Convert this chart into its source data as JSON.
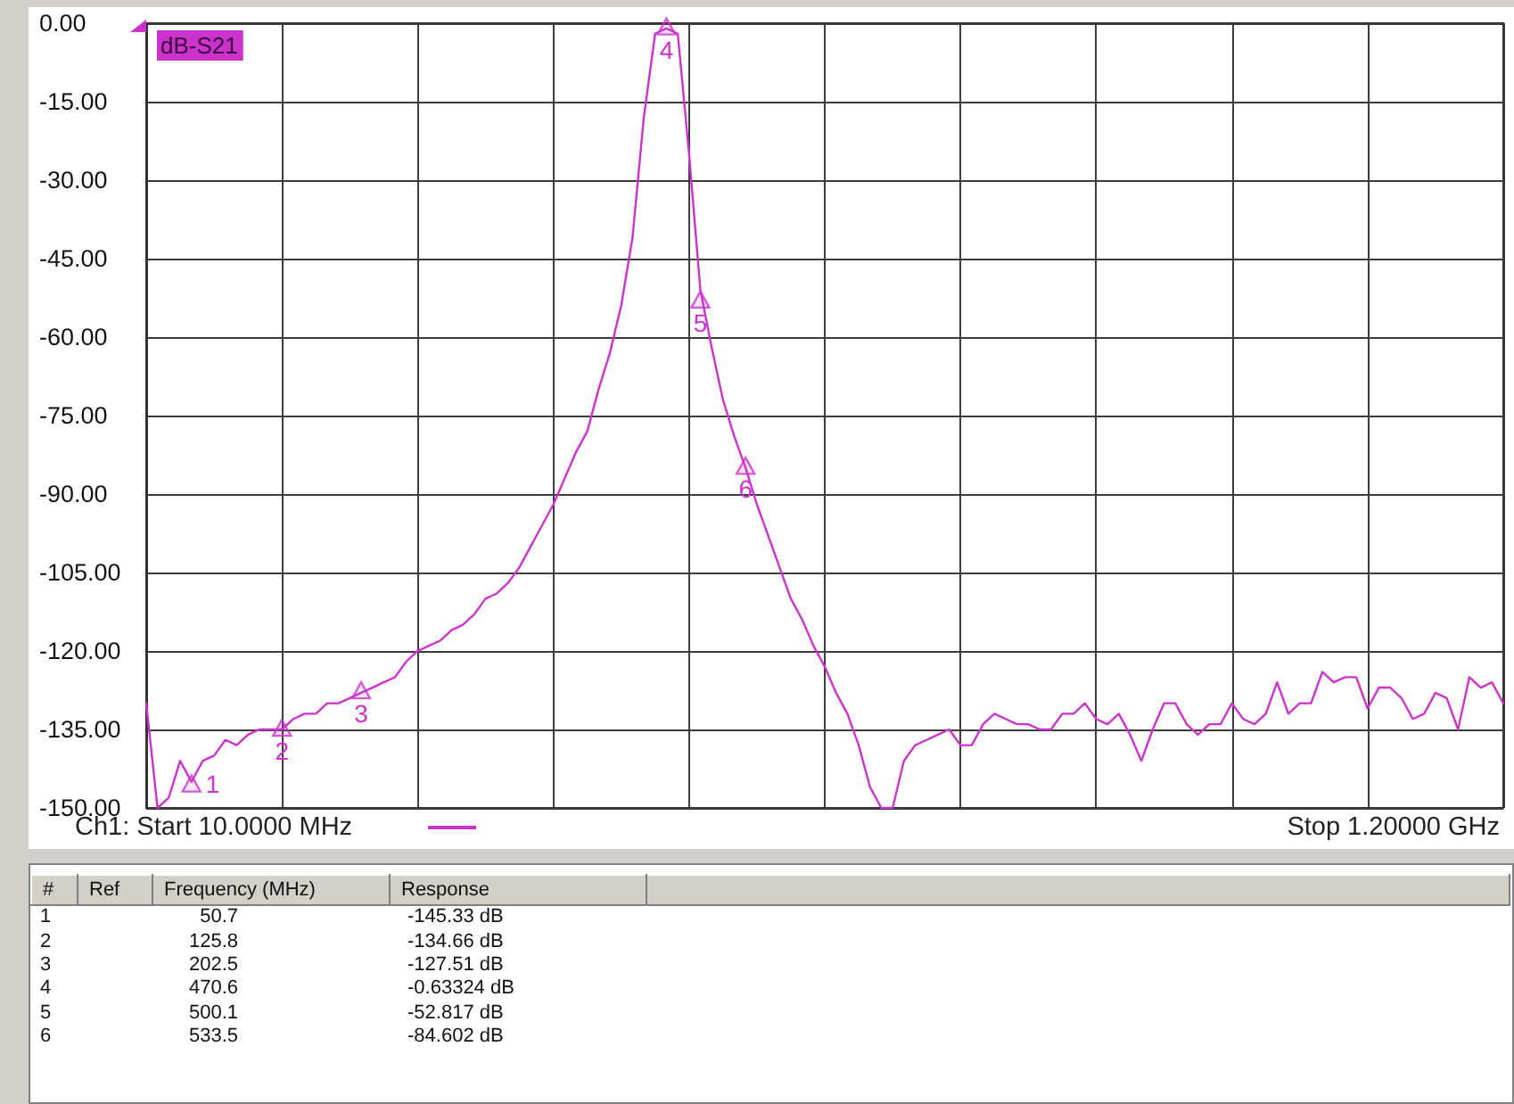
{
  "chart_data": {
    "type": "line",
    "legend": "top left",
    "grid": true,
    "tick_labels": "y",
    "categories": [
      null,
      null,
      null,
      null,
      null,
      null,
      null,
      null,
      null,
      null,
      null,
      null,
      null,
      null,
      null,
      null,
      null,
      null,
      null,
      null,
      null,
      null,
      null,
      null,
      null,
      null,
      null,
      null,
      null,
      null,
      null,
      null,
      null,
      null,
      null,
      null,
      null,
      null,
      null,
      null,
      null,
      null,
      null,
      null,
      null,
      null,
      null,
      null,
      null,
      null,
      null,
      null,
      null,
      null,
      null,
      null,
      null,
      null,
      null,
      null,
      null,
      null,
      null,
      null,
      null,
      null,
      null,
      null,
      null,
      null,
      null,
      null,
      null,
      null,
      null,
      null,
      null,
      null,
      null,
      null,
      null,
      null,
      null,
      null,
      null,
      null,
      null,
      null,
      null,
      null,
      null,
      null,
      null,
      null,
      null,
      null,
      null,
      null,
      null,
      null,
      null,
      null,
      null,
      null,
      null,
      null,
      null,
      null,
      null,
      null,
      null,
      null,
      null,
      null,
      null,
      null,
      null,
      null,
      null,
      null,
      null
    ],
    "ylim": [
      -150,
      0
    ],
    "yticks": [
      {
        "value": 0,
        "label": "0.00"
      },
      {
        "value": -15,
        "label": "-15.00"
      },
      {
        "value": -30,
        "label": "-30.00"
      },
      {
        "value": -45,
        "label": "-45.00"
      },
      {
        "value": -60,
        "label": "-60.00"
      },
      {
        "value": -75,
        "label": "-75.00"
      },
      {
        "value": -90,
        "label": "-90.00"
      },
      {
        "value": -105,
        "label": "-105.00"
      },
      {
        "value": -120,
        "label": "-120.00"
      },
      {
        "value": -135,
        "label": "-135.00"
      },
      {
        "value": -150,
        "label": "-150.00"
      }
    ],
    "annotations": [
      "Ch1: Start 10.0000 MHz",
      "Stop 1.20000 GHz",
      "#",
      "Ref",
      "Frequency (MHz)",
      "Response",
      "1",
      "2",
      "3",
      "4",
      "5",
      "6",
      "50.7",
      "125.8",
      "202.5",
      "470.6",
      "500.1",
      "533.5",
      "-145.33 dB",
      "-134.66 dB",
      "-127.51 dB",
      "-0.63324 dB",
      "-52.817 dB",
      "-84.602 dB"
    ],
    "series": [
      {
        "name": "dB-S21",
        "color": "#cc33cc",
        "values": [
          -130,
          -150,
          -148,
          -141,
          -145,
          -141,
          -140,
          -137,
          -138,
          -136,
          -135,
          -135,
          -135,
          -133,
          -132,
          -132,
          -130,
          -130,
          -129,
          -128,
          -127,
          -126,
          -125,
          -122,
          -120,
          -119,
          -118,
          -116,
          -115,
          -113,
          -110,
          -109,
          -107,
          -104,
          -100,
          -96,
          -92,
          -87,
          -82,
          -78,
          -70,
          -63,
          -54,
          -41,
          -18,
          -2,
          -1,
          -2,
          -25,
          -51,
          -62,
          -72,
          -79,
          -85,
          -92,
          -98,
          -104,
          -110,
          -114,
          -119,
          -123,
          -128,
          -132,
          -138,
          -146,
          -150,
          -150,
          -141,
          -138,
          -137,
          -136,
          -135,
          -138,
          -138,
          -134,
          -132,
          -133,
          -134,
          -134,
          -135,
          -135,
          -132,
          -132,
          -130,
          -133,
          -134,
          -132,
          -136,
          -141,
          -135,
          -130,
          -130,
          -134,
          -136,
          -134,
          -134,
          -130,
          -133,
          -134,
          -132,
          -126,
          -132,
          -130,
          -130,
          -124,
          -126,
          -125,
          -125,
          -131,
          -127,
          -127,
          -129,
          -133,
          -132,
          -128,
          -129,
          -135,
          -125,
          -127,
          -126,
          -130
        ]
      },
      {
        "type": "scatter",
        "color": "#cc33cc",
        "marker": "triangle",
        "values": [
          null,
          null,
          null,
          null,
          -145.33,
          null,
          null,
          null,
          null,
          null,
          null,
          null,
          -134.66,
          null,
          null,
          null,
          null,
          null,
          null,
          -127.51,
          null,
          null,
          null,
          null,
          null,
          null,
          null,
          null,
          null,
          null,
          null,
          null,
          null,
          null,
          null,
          null,
          null,
          null,
          null,
          null,
          null,
          null,
          null,
          null,
          null,
          null,
          -0.63324,
          null,
          null,
          -52.817,
          null,
          null,
          null,
          -84.602,
          null,
          null,
          null,
          null,
          null,
          null,
          null,
          null,
          null,
          null,
          null,
          null,
          null,
          null,
          null,
          null,
          null,
          null,
          null,
          null,
          null,
          null,
          null,
          null,
          null,
          null,
          null,
          null,
          null,
          null,
          null,
          null,
          null,
          null,
          null,
          null,
          null,
          null,
          null,
          null,
          null,
          null,
          null,
          null,
          null,
          null,
          null,
          null,
          null,
          null,
          null,
          null,
          null,
          null,
          null,
          null,
          null,
          null,
          null,
          null,
          null,
          null,
          null,
          null,
          null,
          null,
          null
        ]
      }
    ]
  }
}
